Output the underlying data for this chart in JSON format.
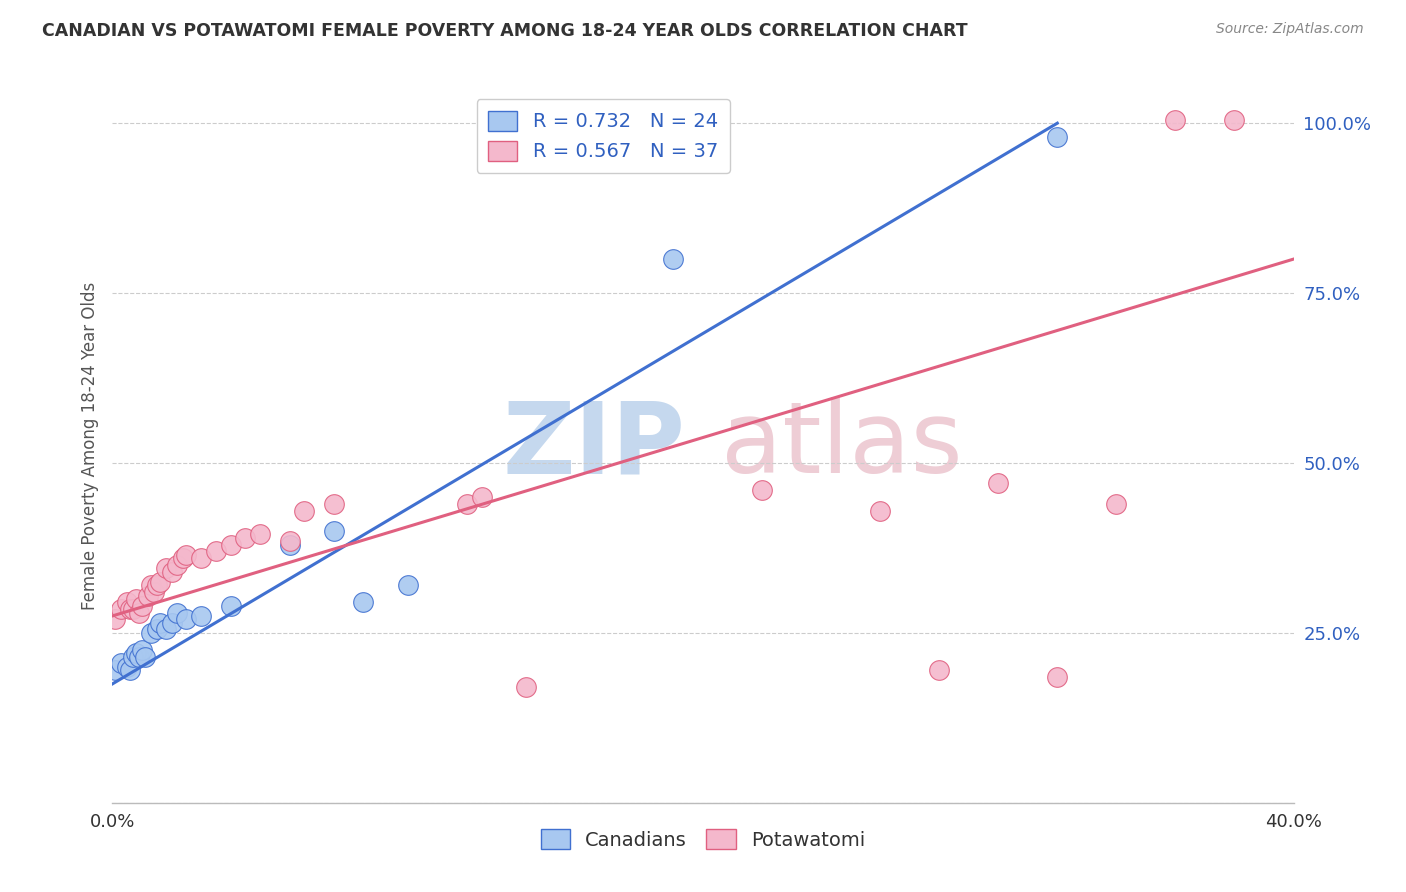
{
  "title": "CANADIAN VS POTAWATOMI FEMALE POVERTY AMONG 18-24 YEAR OLDS CORRELATION CHART",
  "source": "Source: ZipAtlas.com",
  "ylabel": "Female Poverty Among 18-24 Year Olds",
  "xlim": [
    0.0,
    0.4
  ],
  "ylim": [
    0.0,
    1.05
  ],
  "x_ticks": [
    0.0,
    0.04,
    0.08,
    0.12,
    0.16,
    0.2,
    0.24,
    0.28,
    0.32,
    0.36,
    0.4
  ],
  "y_ticks": [
    0.0,
    0.25,
    0.5,
    0.75,
    1.0
  ],
  "y_tick_labels": [
    "",
    "25.0%",
    "50.0%",
    "75.0%",
    "100.0%"
  ],
  "canadian_R": 0.732,
  "canadian_N": 24,
  "potawatomi_R": 0.567,
  "potawatomi_N": 37,
  "canadian_color": "#a8c8f0",
  "potawatomi_color": "#f4b8cc",
  "canadian_line_color": "#4070d0",
  "potawatomi_line_color": "#e06080",
  "legend_R_color": "#3060c0",
  "canadians_x": [
    0.001,
    0.003,
    0.005,
    0.006,
    0.007,
    0.008,
    0.009,
    0.01,
    0.011,
    0.013,
    0.015,
    0.016,
    0.018,
    0.02,
    0.022,
    0.025,
    0.03,
    0.04,
    0.06,
    0.075,
    0.085,
    0.1,
    0.19,
    0.32
  ],
  "canadians_y": [
    0.195,
    0.205,
    0.2,
    0.195,
    0.215,
    0.22,
    0.215,
    0.225,
    0.215,
    0.25,
    0.255,
    0.265,
    0.255,
    0.265,
    0.28,
    0.27,
    0.275,
    0.29,
    0.38,
    0.4,
    0.295,
    0.32,
    0.8,
    0.98
  ],
  "potawatomi_x": [
    0.001,
    0.003,
    0.005,
    0.006,
    0.007,
    0.008,
    0.009,
    0.01,
    0.012,
    0.013,
    0.014,
    0.015,
    0.016,
    0.018,
    0.02,
    0.022,
    0.024,
    0.025,
    0.03,
    0.035,
    0.04,
    0.045,
    0.05,
    0.06,
    0.065,
    0.075,
    0.12,
    0.125,
    0.14,
    0.22,
    0.26,
    0.28,
    0.3,
    0.32,
    0.34,
    0.36,
    0.38
  ],
  "potawatomi_y": [
    0.27,
    0.285,
    0.295,
    0.285,
    0.285,
    0.3,
    0.28,
    0.29,
    0.305,
    0.32,
    0.31,
    0.32,
    0.325,
    0.345,
    0.34,
    0.35,
    0.36,
    0.365,
    0.36,
    0.37,
    0.38,
    0.39,
    0.395,
    0.385,
    0.43,
    0.44,
    0.44,
    0.45,
    0.17,
    0.46,
    0.43,
    0.195,
    0.47,
    0.185,
    0.44,
    1.005,
    1.005
  ],
  "can_line_x0": 0.0,
  "can_line_y0": 0.175,
  "can_line_x1": 0.32,
  "can_line_y1": 1.0,
  "pot_line_x0": 0.0,
  "pot_line_y0": 0.275,
  "pot_line_x1": 0.4,
  "pot_line_y1": 0.8
}
